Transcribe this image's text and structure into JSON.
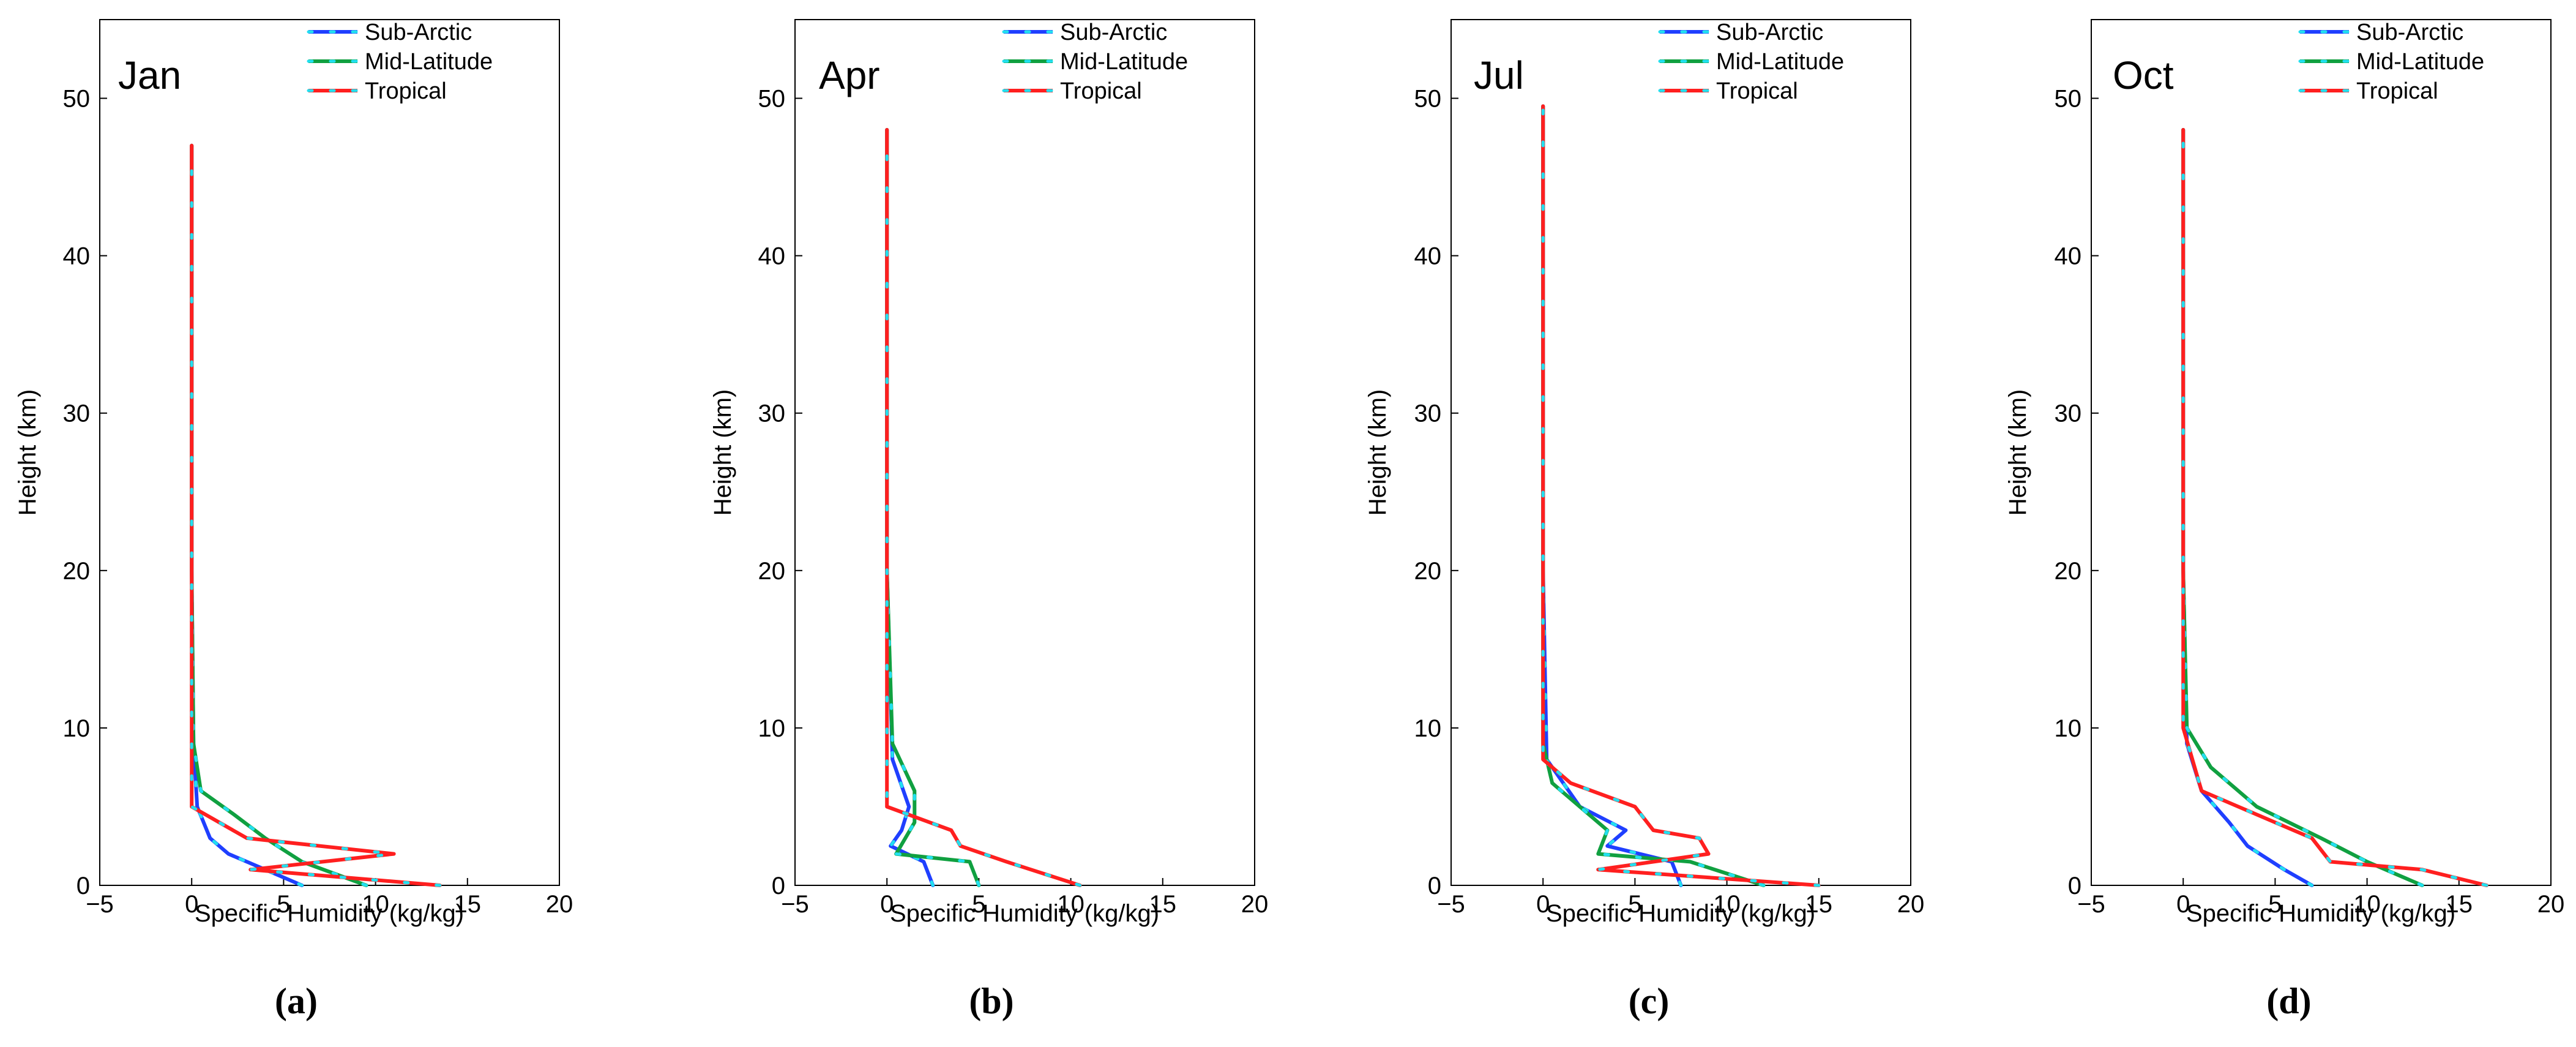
{
  "figure": {
    "captions": [
      "(a)",
      "(b)",
      "(c)",
      "(d)"
    ]
  },
  "colors": {
    "sub_arctic": "#1f3fff",
    "mid_latitude": "#10a040",
    "tropical": "#ff1f1f",
    "marker_dash": "#22e0f0"
  },
  "chart_data": [
    {
      "type": "line",
      "panel_label": "Jan",
      "xlabel": "Specific Humidity (kg/kg)",
      "ylabel": "Height (km)",
      "xlim": [
        -5,
        20
      ],
      "ylim": [
        0,
        55
      ],
      "xticks": [
        -5,
        0,
        5,
        10,
        15,
        20
      ],
      "yticks": [
        0,
        10,
        20,
        30,
        40,
        50
      ],
      "legend": [
        "Sub-Arctic",
        "Mid-Latitude",
        "Tropical"
      ],
      "legend_position": "top-right",
      "series": [
        {
          "name": "Sub-Arctic",
          "x": [
            6,
            4,
            2,
            1,
            0.3,
            0.1,
            0,
            0
          ],
          "y": [
            0,
            1,
            2,
            3,
            5,
            9,
            20,
            47
          ]
        },
        {
          "name": "Mid-Latitude",
          "x": [
            9.5,
            6,
            4,
            2.3,
            0.5,
            0.1,
            0,
            0
          ],
          "y": [
            0,
            1.5,
            3,
            4.5,
            6,
            9,
            20,
            47
          ]
        },
        {
          "name": "Tropical",
          "x": [
            13.5,
            3.2,
            11,
            3,
            0,
            0
          ],
          "y": [
            0,
            1,
            2,
            3,
            5,
            47
          ]
        }
      ]
    },
    {
      "type": "line",
      "panel_label": "Apr",
      "xlabel": "Specific Humidity (kg/kg)",
      "ylabel": "Height (km)",
      "xlim": [
        -5,
        20
      ],
      "ylim": [
        0,
        55
      ],
      "xticks": [
        -5,
        0,
        5,
        10,
        15,
        20
      ],
      "yticks": [
        0,
        10,
        20,
        30,
        40,
        50
      ],
      "legend": [
        "Sub-Arctic",
        "Mid-Latitude",
        "Tropical"
      ],
      "legend_position": "top-right",
      "series": [
        {
          "name": "Sub-Arctic",
          "x": [
            2.5,
            2,
            0.2,
            0.8,
            1.2,
            0.3,
            0,
            0
          ],
          "y": [
            0,
            1.5,
            2.5,
            3.5,
            5,
            8,
            20,
            48
          ]
        },
        {
          "name": "Mid-Latitude",
          "x": [
            5,
            4.5,
            0.5,
            1.5,
            1.5,
            0.3,
            0,
            0
          ],
          "y": [
            0,
            1.5,
            2,
            4,
            6,
            9,
            20,
            48
          ]
        },
        {
          "name": "Tropical",
          "x": [
            10.5,
            6.5,
            4,
            3.5,
            0,
            0
          ],
          "y": [
            0,
            1.5,
            2.5,
            3.5,
            5,
            48
          ]
        }
      ]
    },
    {
      "type": "line",
      "panel_label": "Jul",
      "xlabel": "Specific Humidity (kg/kg)",
      "ylabel": "Height (km)",
      "xlim": [
        -5,
        20
      ],
      "ylim": [
        0,
        55
      ],
      "xticks": [
        -5,
        0,
        5,
        10,
        15,
        20
      ],
      "yticks": [
        0,
        10,
        20,
        30,
        40,
        50
      ],
      "legend": [
        "Sub-Arctic",
        "Mid-Latitude",
        "Tropical"
      ],
      "legend_position": "top-right",
      "series": [
        {
          "name": "Sub-Arctic",
          "x": [
            7.5,
            7,
            3.5,
            4.5,
            2,
            0.2,
            0,
            0
          ],
          "y": [
            0,
            1.5,
            2.5,
            3.5,
            5,
            8,
            20,
            49.5
          ]
        },
        {
          "name": "Mid-Latitude",
          "x": [
            12,
            8,
            3,
            3.5,
            0.5,
            0,
            0,
            0
          ],
          "y": [
            0,
            1.5,
            2,
            3.5,
            6.5,
            9,
            20,
            49.5
          ]
        },
        {
          "name": "Tropical",
          "x": [
            15,
            3,
            9,
            8.5,
            6,
            5,
            1.5,
            0,
            0
          ],
          "y": [
            0,
            1,
            2,
            3,
            3.5,
            5,
            6.5,
            8,
            49.5
          ]
        }
      ]
    },
    {
      "type": "line",
      "panel_label": "Oct",
      "xlabel": "Specific Humidity (kg/kg)",
      "ylabel": "Height (km)",
      "xlim": [
        -5,
        20
      ],
      "ylim": [
        0,
        55
      ],
      "xticks": [
        -5,
        0,
        5,
        10,
        15,
        20
      ],
      "yticks": [
        0,
        10,
        20,
        30,
        40,
        50
      ],
      "legend": [
        "Sub-Arctic",
        "Mid-Latitude",
        "Tropical"
      ],
      "legend_position": "top-right",
      "series": [
        {
          "name": "Sub-Arctic",
          "x": [
            7,
            5.5,
            3.5,
            2.5,
            1,
            0.2,
            0,
            0
          ],
          "y": [
            0,
            1,
            2.5,
            4,
            6,
            9,
            20,
            48
          ]
        },
        {
          "name": "Mid-Latitude",
          "x": [
            13,
            10,
            7.5,
            4,
            1.5,
            0.2,
            0,
            0
          ],
          "y": [
            0,
            1.5,
            3,
            5,
            7.5,
            10,
            20,
            48
          ]
        },
        {
          "name": "Tropical",
          "x": [
            16.5,
            13,
            8,
            7,
            3,
            1,
            0,
            0
          ],
          "y": [
            0,
            1,
            1.5,
            3,
            5,
            6,
            10,
            48
          ]
        }
      ]
    }
  ]
}
